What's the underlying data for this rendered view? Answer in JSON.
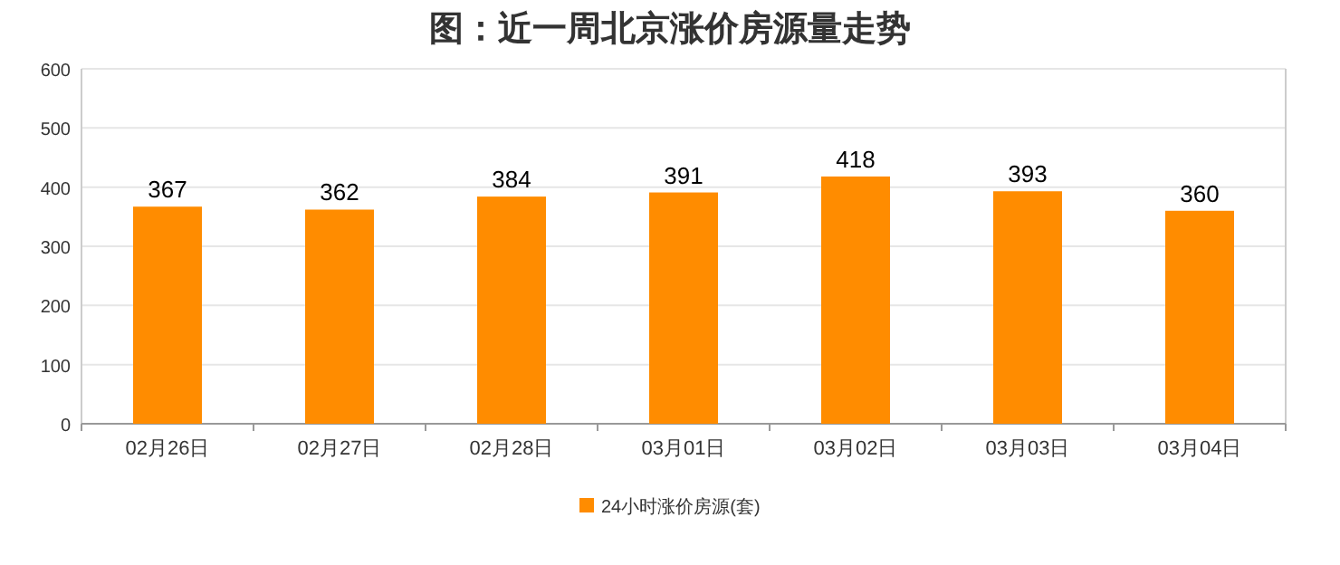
{
  "chart_data": {
    "type": "bar",
    "title": "图：近一周北京涨价房源量走势",
    "categories": [
      "02月26日",
      "02月27日",
      "02月28日",
      "03月01日",
      "03月02日",
      "03月03日",
      "03月04日"
    ],
    "series": [
      {
        "name": "24小时涨价房源(套)",
        "color": "#ff8c00",
        "values": [
          367,
          362,
          384,
          391,
          418,
          393,
          360
        ]
      }
    ],
    "ylim": [
      0,
      600
    ],
    "yticks": [
      0,
      100,
      200,
      300,
      400,
      500,
      600
    ],
    "grid": "y",
    "legend": "bottom",
    "data_labels": true
  }
}
